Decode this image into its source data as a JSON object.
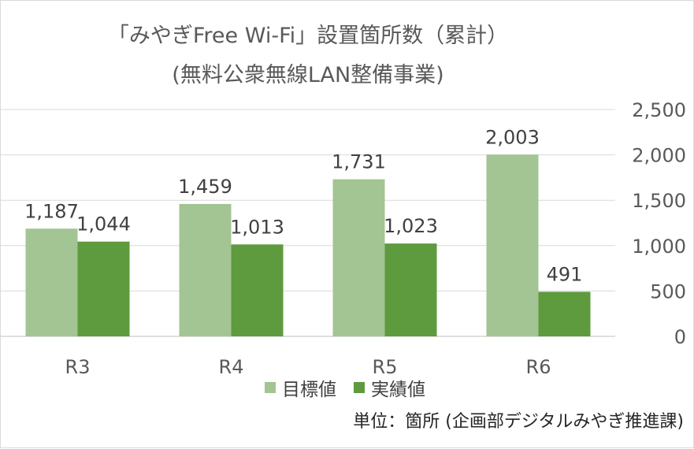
{
  "chart_data": {
    "type": "bar",
    "title": "「みやぎFree Wi-Fi」設置箇所数（累計）",
    "subtitle": "(無料公衆無線LAN整備事業)",
    "categories": [
      "R3",
      "R4",
      "R5",
      "R6"
    ],
    "series": [
      {
        "name": "目標値",
        "values": [
          1187,
          1459,
          1731,
          2003
        ],
        "color": "#a3c493"
      },
      {
        "name": "実績値",
        "values": [
          1044,
          1013,
          1023,
          491
        ],
        "color": "#5e9a3e"
      }
    ],
    "y_axis": {
      "position": "right",
      "min": 0,
      "max": 2500,
      "ticks": [
        0,
        500,
        1000,
        1500,
        2000,
        2500
      ]
    },
    "gridlines": true,
    "legend_position": "bottom",
    "note": "単位：箇所 (企画部デジタルみやぎ推進課)"
  }
}
